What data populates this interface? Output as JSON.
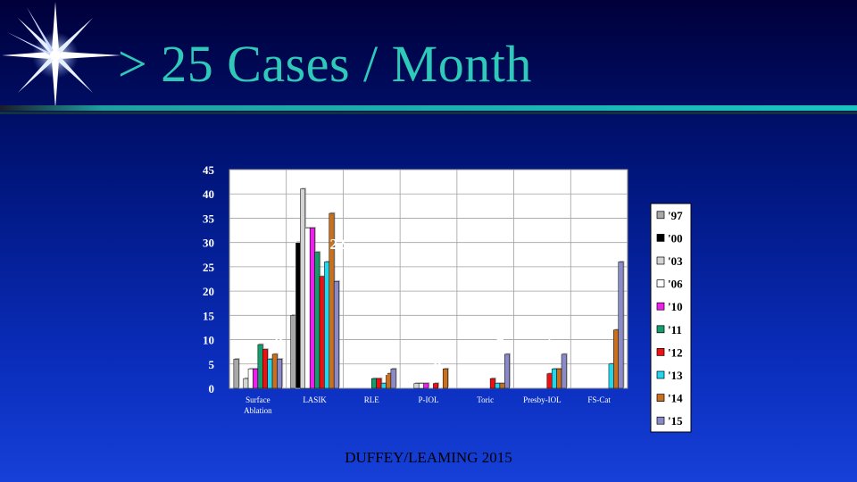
{
  "slide": {
    "title": "> 25 Cases / Month",
    "footer": "DUFFEY/LEAMING 2015"
  },
  "colors": {
    "title": "#2ec9b8",
    "background": "#0a2dbb",
    "bar_outline": "#000000"
  },
  "chart_data": {
    "type": "bar",
    "categories": [
      "Surface Ablation",
      "LASIK",
      "RLE",
      "P-IOL",
      "Toric",
      "Presby-IOL",
      "FS-Cat"
    ],
    "ylim": [
      0,
      45
    ],
    "yticks": [
      0,
      5,
      10,
      15,
      20,
      25,
      30,
      35,
      40,
      45
    ],
    "grid": true,
    "legend_position": "right",
    "series": [
      {
        "name": "'97",
        "color": "#a8a8a8",
        "values": [
          6,
          15,
          0,
          0,
          0,
          0,
          0
        ]
      },
      {
        "name": "'00",
        "color": "#000000",
        "values": [
          0,
          30,
          0,
          0,
          0,
          0,
          0
        ]
      },
      {
        "name": "'03",
        "color": "#d4d4d4",
        "values": [
          2,
          41,
          0,
          1,
          0,
          0,
          0
        ]
      },
      {
        "name": "'06",
        "color": "#ffffff",
        "values": [
          4,
          33,
          0,
          1,
          0,
          0,
          0
        ]
      },
      {
        "name": "'10",
        "color": "#ee20ee",
        "values": [
          4,
          33,
          0,
          1,
          0,
          0,
          0
        ]
      },
      {
        "name": "'11",
        "color": "#139e6b",
        "values": [
          9,
          28,
          2,
          0,
          0,
          0,
          0
        ]
      },
      {
        "name": "'12",
        "color": "#ee1111",
        "values": [
          8,
          23,
          2,
          1,
          2,
          3,
          0
        ]
      },
      {
        "name": "'13",
        "color": "#22d6ee",
        "values": [
          6,
          26,
          1,
          0,
          1,
          4,
          5
        ]
      },
      {
        "name": "'14",
        "color": "#c8701e",
        "values": [
          7,
          36,
          3,
          4,
          1,
          4,
          12
        ]
      },
      {
        "name": "'15",
        "color": "#8a8ac8",
        "values": [
          6,
          22,
          4,
          0,
          7,
          7,
          26
        ]
      }
    ],
    "annotations": [
      "6",
      "22",
      "4",
      "0",
      "7",
      "7",
      "26",
      "*"
    ]
  }
}
